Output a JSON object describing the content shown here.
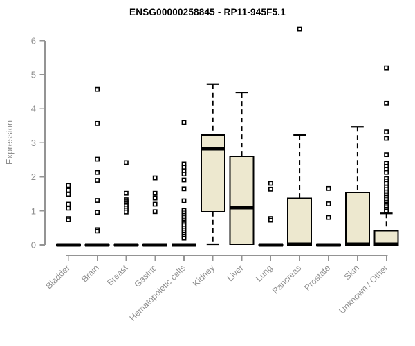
{
  "chart_data": {
    "type": "boxplot",
    "title": "ENSG00000258845 - RP11-945F5.1",
    "xlabel": "",
    "ylabel": "Expression",
    "ylim": [
      0,
      6
    ],
    "yticks": [
      0,
      1,
      2,
      3,
      4,
      5,
      6
    ],
    "grid": false,
    "legend": "none",
    "colors": {
      "box_fill": "#EDE8CF",
      "box_stroke": "#000000",
      "median": "#000000",
      "whisker": "#000000",
      "outlier_stroke": "#000000",
      "outlier_fill": "#ffffff",
      "axis": "#949494",
      "tick_label": "#8f8f8f",
      "title": "#000000"
    },
    "categories": [
      "Bladder",
      "Brain",
      "Breast",
      "Gastric",
      "Hematopoietic cells",
      "Kidney",
      "Liver",
      "Lung",
      "Pancreas",
      "Prostate",
      "Skin",
      "Unknown / Other"
    ],
    "series": [
      {
        "category": "Bladder",
        "whisker_low": 0,
        "q1": 0,
        "median": 0,
        "q3": 0,
        "whisker_high": 0,
        "outliers": [
          1.75,
          1.61,
          1.49,
          1.2,
          1.08,
          0.78,
          0.74
        ]
      },
      {
        "category": "Brain",
        "whisker_low": 0,
        "q1": 0,
        "median": 0,
        "q3": 0,
        "whisker_high": 0,
        "outliers": [
          4.57,
          3.57,
          2.52,
          2.13,
          1.9,
          1.31,
          0.96,
          0.45,
          0.41
        ]
      },
      {
        "category": "Breast",
        "whisker_low": 0,
        "q1": 0,
        "median": 0,
        "q3": 0,
        "whisker_high": 0,
        "outliers": [
          2.42,
          1.52,
          1.33,
          1.27,
          1.21,
          1.15,
          1.09,
          1.03,
          0.97
        ]
      },
      {
        "category": "Gastric",
        "whisker_low": 0,
        "q1": 0,
        "median": 0,
        "q3": 0,
        "whisker_high": 0,
        "outliers": [
          1.97,
          1.52,
          1.38,
          1.2,
          0.98
        ]
      },
      {
        "category": "Hematopoietic cells",
        "whisker_low": 0,
        "q1": 0,
        "median": 0,
        "q3": 0,
        "whisker_high": 0,
        "outliers": [
          3.6,
          2.38,
          2.28,
          2.18,
          2.08,
          1.91,
          1.65,
          1.3,
          1.02,
          0.97,
          0.92,
          0.87,
          0.82,
          0.77,
          0.72,
          0.67,
          0.62,
          0.57,
          0.5,
          0.44,
          0.38,
          0.32,
          0.26,
          0.2
        ]
      },
      {
        "category": "Kidney",
        "whisker_low": 0.02,
        "q1": 0.98,
        "median": 2.83,
        "q3": 3.23,
        "whisker_high": 4.72,
        "outliers": []
      },
      {
        "category": "Liver",
        "whisker_low": 0.02,
        "q1": 0.02,
        "median": 1.1,
        "q3": 2.6,
        "whisker_high": 4.47,
        "outliers": []
      },
      {
        "category": "Lung",
        "whisker_low": 0,
        "q1": 0,
        "median": 0,
        "q3": 0,
        "whisker_high": 0,
        "outliers": [
          1.81,
          1.64,
          0.78,
          0.73
        ]
      },
      {
        "category": "Pancreas",
        "whisker_low": 0,
        "q1": 0,
        "median": 0.02,
        "q3": 1.37,
        "whisker_high": 3.23,
        "outliers": [
          6.34
        ]
      },
      {
        "category": "Prostate",
        "whisker_low": 0,
        "q1": 0,
        "median": 0,
        "q3": 0,
        "whisker_high": 0,
        "outliers": [
          1.66,
          1.21,
          0.81
        ]
      },
      {
        "category": "Skin",
        "whisker_low": 0,
        "q1": 0,
        "median": 0.02,
        "q3": 1.54,
        "whisker_high": 3.47,
        "outliers": []
      },
      {
        "category": "Unknown / Other",
        "whisker_low": 0,
        "q1": 0,
        "median": 0.02,
        "q3": 0.42,
        "whisker_high": 0.93,
        "outliers": [
          5.2,
          4.16,
          3.32,
          3.13,
          2.65,
          2.4,
          2.31,
          2.22,
          2.13,
          1.95,
          1.88,
          1.81,
          1.7,
          1.63,
          1.56,
          1.5,
          1.45,
          1.4,
          1.35,
          1.3,
          1.25,
          1.2,
          1.15,
          1.1,
          1.05,
          1.0
        ]
      }
    ]
  }
}
